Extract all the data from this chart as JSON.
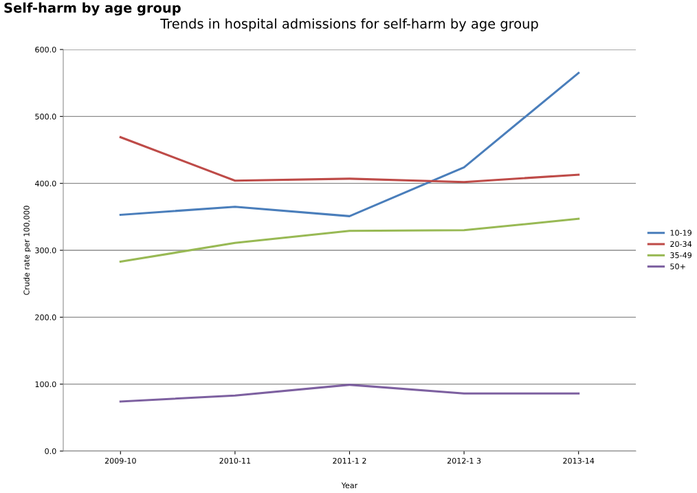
{
  "chart_data": {
    "type": "line",
    "title": "Trends in hospital admissions for self-harm by age group",
    "xlabel": "Year",
    "ylabel": "Crude rate per 100,000",
    "annotations": [
      "Self-harm by age group"
    ],
    "categories": [
      "2009-10",
      "2010-11",
      "2011-1 2",
      "2012-1 3",
      "2013-14"
    ],
    "series": [
      {
        "name": "10-19",
        "color": "#4a7ebb",
        "values": [
          353,
          365,
          351,
          424,
          565
        ]
      },
      {
        "name": "20-34",
        "color": "#be4b48",
        "values": [
          469,
          404,
          407,
          402,
          413
        ]
      },
      {
        "name": "35-49",
        "color": "#98b954",
        "values": [
          283,
          311,
          329,
          330,
          347
        ]
      },
      {
        "name": "50+",
        "color": "#7d60a0",
        "values": [
          74,
          83,
          99,
          86,
          86
        ]
      }
    ],
    "ylim": [
      0,
      600
    ],
    "yticks": [
      {
        "value": 0,
        "label": "0.0"
      },
      {
        "value": 100,
        "label": "100.0"
      },
      {
        "value": 200,
        "label": "200.0"
      },
      {
        "value": 300,
        "label": "300.0"
      },
      {
        "value": 400,
        "label": "400.0"
      },
      {
        "value": 500,
        "label": "500.0"
      },
      {
        "value": 600,
        "label": "600.0"
      }
    ],
    "grid": "y",
    "legend": "right",
    "marker": "none",
    "line_style": "solid"
  }
}
